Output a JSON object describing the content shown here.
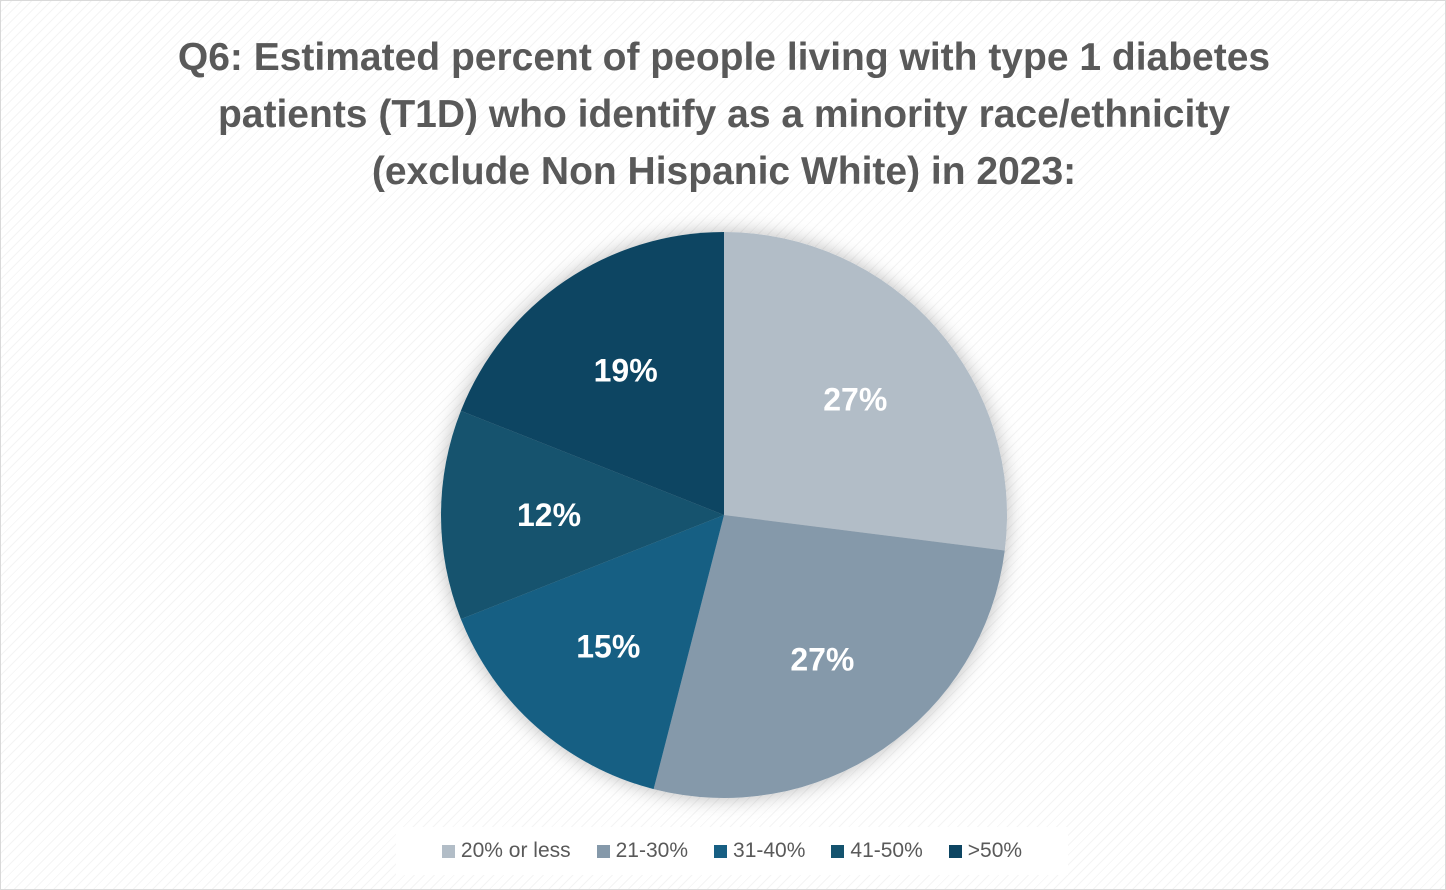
{
  "chart_data": {
    "type": "pie",
    "title": "Q6: Estimated percent of people living with type 1 diabetes patients (T1D) who identify as a minority race/ethnicity (exclude Non Hispanic White) in 2023:",
    "categories": [
      "20% or less",
      "21-30%",
      "31-40%",
      "41-50%",
      ">50%"
    ],
    "values": [
      27,
      27,
      15,
      12,
      19
    ],
    "data_labels": [
      "27%",
      "27%",
      "15%",
      "12%",
      "19%"
    ],
    "colors": [
      "#b2bdc7",
      "#8599aa",
      "#175f83",
      "#14536e",
      "#0d4562"
    ],
    "legend_position": "bottom",
    "start_angle": "12 o'clock",
    "direction": "clockwise"
  }
}
